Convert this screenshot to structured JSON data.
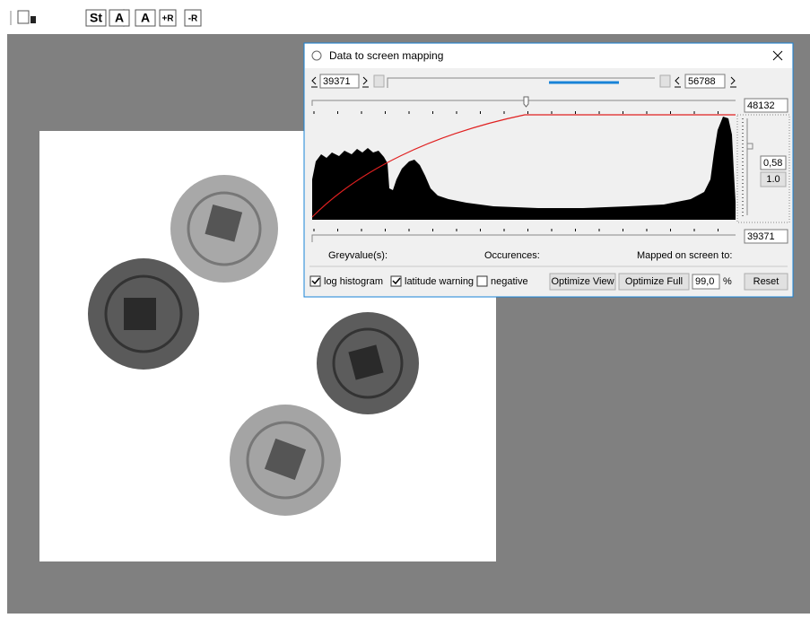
{
  "toolbar": {
    "buttons": [
      "St",
      "A",
      "A",
      "+R",
      "-R"
    ]
  },
  "dialog": {
    "title": "Data to screen mapping",
    "min_value": "39371",
    "max_value": "56788",
    "top_value": "48132",
    "gamma": "0,58",
    "gamma_reset": "1.0",
    "bottom_value": "39371",
    "labels": [
      "Greyvalue(s):",
      "Occurences:",
      "Mapped on screen to:"
    ],
    "checkboxes": [
      {
        "label": "log histogram",
        "checked": true
      },
      {
        "label": "latitude warning",
        "checked": true
      },
      {
        "label": "negative",
        "checked": false
      }
    ],
    "buttons": [
      "Optimize View",
      "Optimize Full"
    ],
    "percent_value": "99,0",
    "percent_unit": "%",
    "reset": "Reset"
  }
}
